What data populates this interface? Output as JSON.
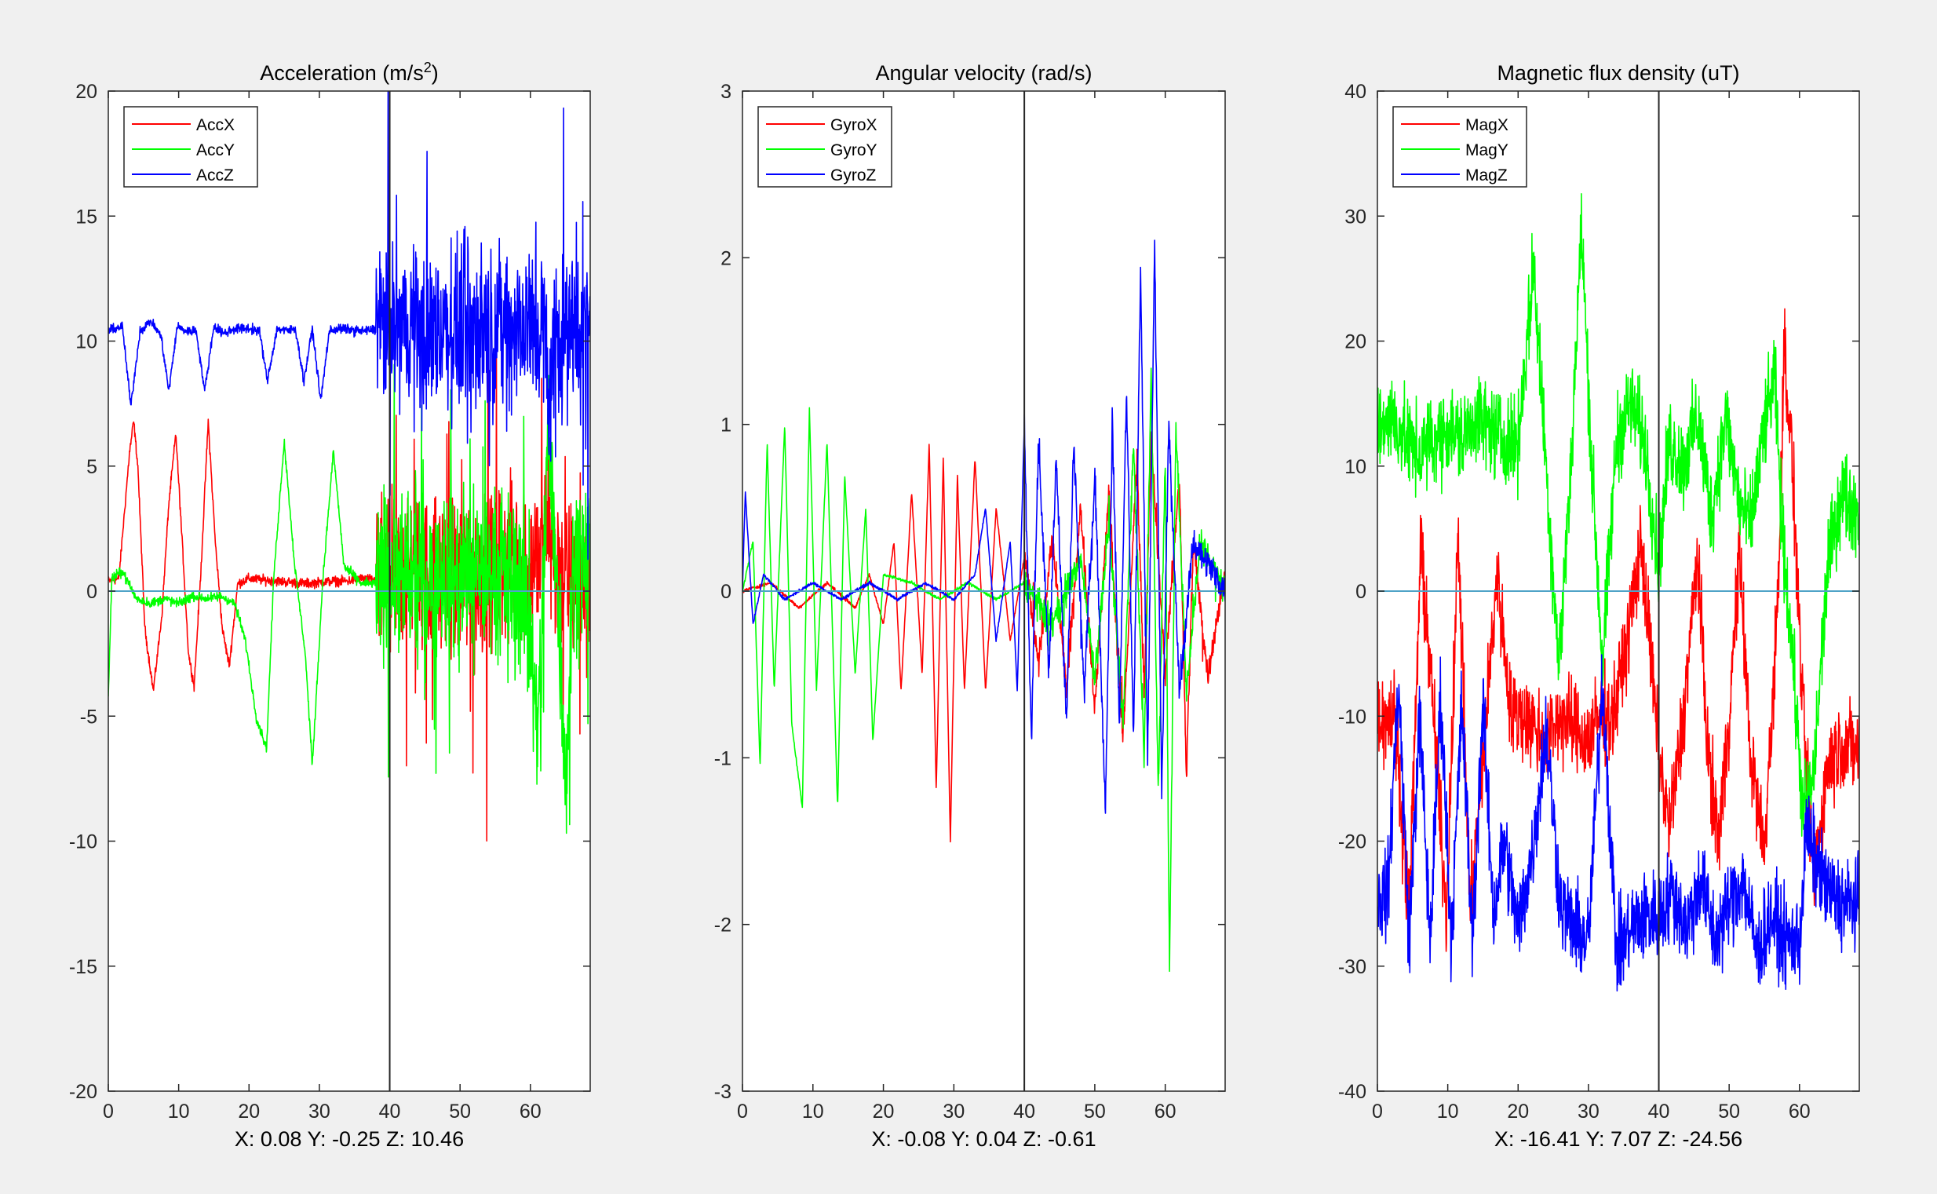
{
  "figure": {
    "background": "#f0f0f0",
    "axes_background": "#ffffff"
  },
  "chart_data": [
    {
      "type": "line",
      "title": "Acceleration (m/s",
      "title_superscript": "2",
      "title_suffix": ")",
      "xlim": [
        0,
        68.5
      ],
      "ylim": [
        -20,
        20
      ],
      "xticks": [
        0,
        10,
        20,
        30,
        40,
        50,
        60
      ],
      "yticks": [
        -20,
        -15,
        -10,
        -5,
        0,
        5,
        10,
        15,
        20
      ],
      "cursor_x": 40,
      "zero_line": 0,
      "readout": "X: 0.08  Y: -0.25  Z: 10.46",
      "legend_position": "top-left",
      "series": [
        {
          "name": "AccX",
          "color": "#ff0000",
          "x": [
            0,
            1.5,
            3.0,
            3.6,
            4.2,
            5.2,
            6.4,
            7.6,
            8.6,
            9.6,
            10.6,
            11.4,
            12.2,
            13.2,
            14.2,
            15.2,
            16.2,
            17.2,
            18.4,
            20,
            24,
            28,
            32,
            34,
            36,
            40,
            44,
            48,
            52,
            56,
            58,
            60,
            61.5,
            62.5,
            63.5,
            65,
            68.5
          ],
          "y": [
            0.4,
            0.5,
            5.5,
            6.8,
            5.0,
            -1.5,
            -4.0,
            -1.0,
            3.5,
            6.3,
            1.5,
            -2.5,
            -3.8,
            1.0,
            6.8,
            2.0,
            -1.5,
            -3.0,
            0.3,
            0.5,
            0.4,
            0.3,
            0.4,
            0.4,
            0.5,
            0.4,
            0.6,
            0.6,
            0.7,
            1.0,
            1.2,
            1.0,
            1.5,
            3.0,
            1.0,
            0.5,
            0.4
          ]
        },
        {
          "name": "AccY",
          "color": "#00ff00",
          "x": [
            0,
            0.5,
            2,
            4,
            6,
            8,
            10,
            12,
            14,
            16,
            18,
            19.5,
            21,
            22.5,
            23.5,
            25,
            26.5,
            28,
            29,
            30.5,
            32,
            33.5,
            36,
            40,
            44,
            48,
            52,
            56,
            58,
            60,
            61,
            62,
            62.5,
            63.5,
            65,
            66,
            68.5
          ],
          "y": [
            -4.2,
            0.5,
            0.8,
            -0.3,
            -0.5,
            -0.3,
            -0.5,
            -0.2,
            -0.3,
            -0.2,
            -0.5,
            -2.0,
            -5.0,
            -6.3,
            0.5,
            6.0,
            1.0,
            -2.5,
            -7.0,
            0.5,
            5.6,
            1.0,
            0.3,
            0.3,
            0.5,
            0.4,
            0.6,
            0.7,
            0.5,
            -1.5,
            -6.5,
            1.5,
            6.0,
            2.0,
            -7.8,
            1.0,
            1.5
          ]
        },
        {
          "name": "AccZ",
          "color": "#0000ff",
          "x": [
            0,
            2,
            3.2,
            4.5,
            6,
            7.5,
            8.6,
            9.8,
            11,
            12.5,
            13.7,
            15,
            16.4,
            18,
            20,
            21.5,
            22.6,
            24,
            25.5,
            26.6,
            27.8,
            29,
            30.2,
            31.4,
            32.8,
            36,
            40,
            44,
            48,
            52,
            56,
            60,
            62,
            62.6,
            63.5,
            65,
            68.5
          ],
          "y": [
            10.4,
            10.6,
            7.4,
            10.4,
            10.8,
            10.2,
            8.0,
            10.6,
            10.4,
            10.4,
            8.0,
            10.6,
            10.3,
            10.5,
            10.5,
            10.4,
            8.4,
            10.5,
            10.4,
            10.5,
            8.4,
            10.5,
            7.6,
            10.4,
            10.5,
            10.4,
            10.5,
            10.5,
            10.4,
            10.5,
            10.6,
            10.4,
            10.6,
            7.0,
            10.6,
            10.4,
            10.3
          ]
        }
      ]
    },
    {
      "type": "line",
      "title": "Angular velocity (rad/s)",
      "xlim": [
        0,
        68.5
      ],
      "ylim": [
        -3,
        3
      ],
      "xticks": [
        0,
        10,
        20,
        30,
        40,
        50,
        60
      ],
      "yticks": [
        -3,
        -2,
        -1,
        0,
        1,
        2,
        3
      ],
      "cursor_x": 40,
      "zero_line": 0,
      "readout": "X: -0.08  Y: 0.04  Z: -0.61",
      "legend_position": "top-left",
      "series": [
        {
          "name": "GyroX",
          "color": "#ff0000",
          "x": [
            0,
            4,
            8,
            12,
            16,
            18,
            20,
            21.5,
            22.5,
            24,
            25.5,
            26.5,
            27.5,
            28.5,
            29.5,
            30.5,
            31.5,
            33,
            34.5,
            36,
            38,
            40,
            42,
            44,
            46,
            48,
            50,
            52,
            54,
            56,
            57,
            58,
            60,
            62,
            63,
            64,
            66,
            68.5
          ],
          "y": [
            0,
            0.05,
            -0.1,
            0.05,
            -0.1,
            0.1,
            -0.2,
            0.3,
            -0.6,
            0.6,
            -0.5,
            0.9,
            -1.2,
            0.8,
            -1.5,
            0.7,
            -0.6,
            0.8,
            -0.6,
            0.5,
            -0.3,
            0.2,
            -0.4,
            0.3,
            -0.6,
            0.5,
            -0.7,
            0.6,
            -0.9,
            0.8,
            -0.6,
            0.9,
            -0.5,
            0.7,
            -1.1,
            0.3,
            -0.5,
            0.1
          ]
        },
        {
          "name": "GyroY",
          "color": "#00ff00",
          "x": [
            0,
            1.5,
            2.5,
            3.5,
            4.5,
            6,
            7,
            8.5,
            9.5,
            10.5,
            12,
            13.5,
            14.5,
            16,
            17.5,
            18.5,
            20,
            24,
            28,
            32,
            36,
            40,
            44,
            48,
            50,
            52,
            54,
            55.5,
            57,
            58,
            59,
            60,
            60.6,
            61.5,
            63,
            65,
            68.5
          ],
          "y": [
            0,
            0.3,
            -1.05,
            0.9,
            -0.6,
            1.0,
            -0.8,
            -1.3,
            1.1,
            -0.6,
            0.9,
            -1.3,
            0.7,
            -0.5,
            0.5,
            -0.9,
            0.1,
            0.05,
            -0.05,
            0.05,
            -0.05,
            0.05,
            -0.2,
            0.2,
            -0.5,
            0.4,
            -0.8,
            0.9,
            -1.0,
            1.3,
            -1.2,
            0.8,
            -2.3,
            1.0,
            -0.6,
            0.3,
            0
          ]
        },
        {
          "name": "GyroZ",
          "color": "#0000ff",
          "x": [
            0,
            0.4,
            1.5,
            3,
            6,
            10,
            14,
            18,
            22,
            26,
            30,
            33,
            34.5,
            36,
            38,
            39,
            40,
            41,
            42,
            43.5,
            44.5,
            46,
            47,
            48.5,
            50,
            51.5,
            52.5,
            53.5,
            54.5,
            55.5,
            56.5,
            57.5,
            58.5,
            59.5,
            60.5,
            62,
            64,
            68.5
          ],
          "y": [
            0,
            0.6,
            -0.2,
            0.1,
            -0.05,
            0.05,
            -0.05,
            0.05,
            -0.05,
            0.05,
            -0.05,
            0.1,
            0.5,
            -0.3,
            0.3,
            -0.6,
            1.0,
            -0.9,
            0.9,
            -0.5,
            0.8,
            -0.8,
            0.9,
            -0.6,
            0.7,
            -1.3,
            1.0,
            -0.8,
            1.2,
            -0.9,
            1.9,
            -1.0,
            2.1,
            -1.2,
            1.0,
            -0.6,
            0.3,
            0
          ]
        }
      ]
    },
    {
      "type": "line",
      "title": "Magnetic flux density (uT)",
      "xlim": [
        0,
        68.5
      ],
      "ylim": [
        -40,
        40
      ],
      "xticks": [
        0,
        10,
        20,
        30,
        40,
        50,
        60
      ],
      "yticks": [
        -40,
        -30,
        -20,
        -10,
        0,
        10,
        20,
        30,
        40
      ],
      "cursor_x": 40,
      "zero_line": 0,
      "readout": "X: -16.41  Y: 7.07  Z: -24.56",
      "legend_position": "top-left",
      "series": [
        {
          "name": "MagX",
          "color": "#ff0000",
          "x": [
            0,
            2.5,
            4.5,
            6.2,
            8,
            9.8,
            11.5,
            13.2,
            15.2,
            17,
            19,
            21,
            22.5,
            24,
            26,
            28,
            30,
            31.5,
            33.5,
            35.5,
            37.5,
            40,
            41.5,
            43.5,
            45.5,
            47,
            48.5,
            50,
            51.5,
            53,
            55,
            57,
            57.8,
            59,
            60.5,
            62,
            64,
            66,
            68.5
          ],
          "y": [
            -10,
            -10,
            -26,
            3.5,
            -10,
            -26,
            4.5,
            -26,
            -12,
            1.5,
            -10,
            -10,
            -11,
            -12,
            -10,
            -11,
            -12,
            -10,
            -10,
            -4,
            4,
            -13,
            -19,
            -10,
            3.0,
            -13,
            -20,
            -10,
            3.0,
            -13,
            -21,
            0,
            20,
            10,
            -10,
            -23,
            -14,
            -12,
            -13
          ]
        },
        {
          "name": "MagY",
          "color": "#00ff00",
          "x": [
            0,
            2,
            4,
            6,
            8,
            10,
            12,
            14,
            16,
            18,
            20,
            22.2,
            24,
            25.8,
            27.5,
            29,
            30.5,
            32,
            34,
            36,
            38,
            40,
            41.5,
            43.5,
            45.5,
            47.5,
            49.5,
            51.5,
            53,
            55,
            56.5,
            57.5,
            59,
            60.5,
            62,
            64,
            66,
            68.5
          ],
          "y": [
            13,
            14,
            12,
            11,
            12,
            13,
            12,
            14,
            13,
            12,
            12,
            26,
            10,
            -6,
            10,
            29,
            10,
            -6,
            12,
            15,
            12,
            2,
            12,
            10,
            14,
            6,
            14,
            7,
            5,
            13,
            17,
            5,
            -5,
            -18,
            -15,
            2,
            8,
            6
          ]
        },
        {
          "name": "MagZ",
          "color": "#0000ff",
          "x": [
            0,
            1.5,
            3,
            4.5,
            6,
            7.5,
            9,
            10.5,
            12,
            13.5,
            15,
            16.5,
            18,
            20,
            22,
            24,
            26,
            28,
            30,
            32,
            34,
            36,
            38,
            40,
            42,
            44,
            46,
            48,
            50,
            52,
            54,
            56,
            58,
            60,
            61,
            62.5,
            64,
            66,
            68.5
          ],
          "y": [
            -25,
            -24,
            -7,
            -28,
            -10,
            -28,
            -8,
            -28,
            -9,
            -28,
            -9,
            -26,
            -20,
            -27,
            -21,
            -11,
            -25,
            -27,
            -28,
            -7,
            -29,
            -27,
            -26,
            -26,
            -24,
            -27,
            -23,
            -28,
            -25,
            -23,
            -29,
            -26,
            -28,
            -28,
            -19,
            -22,
            -24,
            -25,
            -25
          ]
        }
      ]
    }
  ]
}
